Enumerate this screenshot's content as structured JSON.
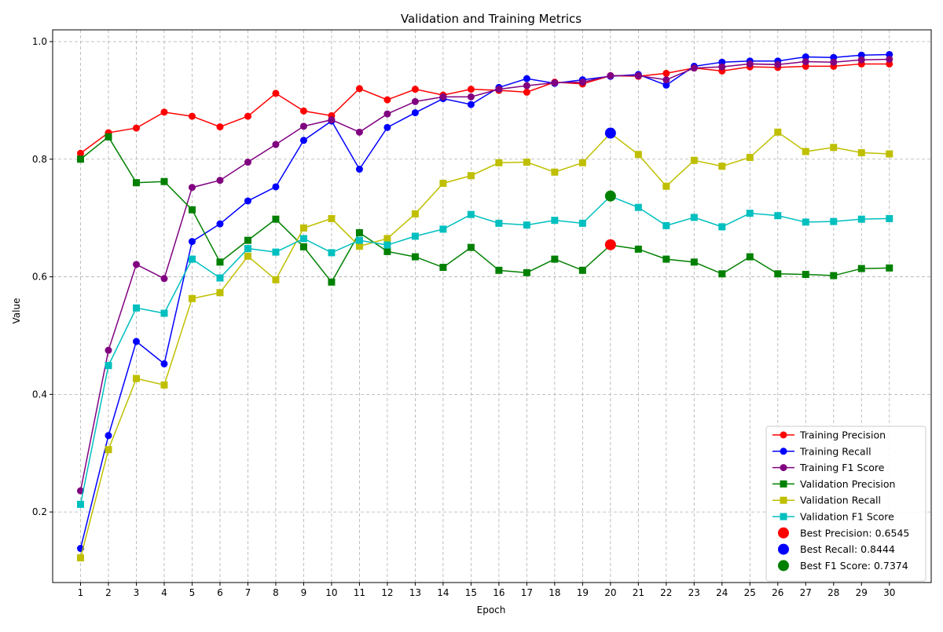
{
  "chart_data": {
    "type": "line",
    "title": "Validation and Training Metrics",
    "xlabel": "Epoch",
    "ylabel": "Value",
    "xlim": [
      0,
      31.5
    ],
    "ylim": [
      0.08,
      1.02
    ],
    "x_ticks": [
      1,
      2,
      3,
      4,
      5,
      6,
      7,
      8,
      9,
      10,
      11,
      12,
      13,
      14,
      15,
      16,
      17,
      18,
      19,
      20,
      21,
      22,
      23,
      24,
      25,
      26,
      27,
      28,
      29,
      30
    ],
    "y_ticks": [
      0.2,
      0.4,
      0.6,
      0.8,
      1.0
    ],
    "y_tick_labels": [
      "0.2",
      "0.4",
      "0.6",
      "0.8",
      "1.0"
    ],
    "grid": true,
    "legend_position": "lower-right",
    "x": [
      1,
      2,
      3,
      4,
      5,
      6,
      7,
      8,
      9,
      10,
      11,
      12,
      13,
      14,
      15,
      16,
      17,
      18,
      19,
      20,
      21,
      22,
      23,
      24,
      25,
      26,
      27,
      28,
      29,
      30
    ],
    "series": [
      {
        "name": "Training Precision",
        "color": "#ff0000",
        "marker": "circle",
        "values": [
          0.81,
          0.845,
          0.853,
          0.88,
          0.873,
          0.855,
          0.873,
          0.912,
          0.882,
          0.874,
          0.92,
          0.901,
          0.919,
          0.909,
          0.919,
          0.917,
          0.914,
          0.931,
          0.928,
          0.942,
          0.941,
          0.946,
          0.955,
          0.95,
          0.957,
          0.956,
          0.958,
          0.958,
          0.962,
          0.962
        ]
      },
      {
        "name": "Training Recall",
        "color": "#0000ff",
        "marker": "circle",
        "values": [
          0.138,
          0.33,
          0.49,
          0.452,
          0.66,
          0.69,
          0.729,
          0.753,
          0.832,
          0.865,
          0.783,
          0.854,
          0.879,
          0.903,
          0.893,
          0.922,
          0.937,
          0.929,
          0.935,
          0.941,
          0.944,
          0.926,
          0.958,
          0.965,
          0.967,
          0.967,
          0.974,
          0.973,
          0.977,
          0.978
        ]
      },
      {
        "name": "Training F1 Score",
        "color": "#800080",
        "marker": "circle",
        "values": [
          0.236,
          0.475,
          0.621,
          0.597,
          0.752,
          0.764,
          0.795,
          0.825,
          0.856,
          0.867,
          0.846,
          0.877,
          0.898,
          0.906,
          0.906,
          0.919,
          0.925,
          0.93,
          0.931,
          0.942,
          0.942,
          0.935,
          0.955,
          0.957,
          0.962,
          0.961,
          0.966,
          0.965,
          0.969,
          0.97
        ]
      },
      {
        "name": "Validation Precision",
        "color": "#008000",
        "marker": "square",
        "values": [
          0.8,
          0.838,
          0.76,
          0.762,
          0.714,
          0.625,
          0.662,
          0.698,
          0.651,
          0.591,
          0.675,
          0.643,
          0.634,
          0.616,
          0.65,
          0.611,
          0.607,
          0.63,
          0.611,
          0.654,
          0.647,
          0.63,
          0.625,
          0.605,
          0.634,
          0.605,
          0.604,
          0.602,
          0.614,
          0.615
        ]
      },
      {
        "name": "Validation Recall",
        "color": "#bfbf00",
        "marker": "square",
        "values": [
          0.122,
          0.306,
          0.427,
          0.416,
          0.563,
          0.573,
          0.635,
          0.595,
          0.683,
          0.699,
          0.652,
          0.665,
          0.707,
          0.759,
          0.772,
          0.794,
          0.795,
          0.778,
          0.794,
          0.844,
          0.808,
          0.754,
          0.798,
          0.788,
          0.803,
          0.846,
          0.813,
          0.82,
          0.811,
          0.809
        ]
      },
      {
        "name": "Validation F1 Score",
        "color": "#00bfbf",
        "marker": "square",
        "values": [
          0.213,
          0.449,
          0.547,
          0.538,
          0.63,
          0.598,
          0.648,
          0.642,
          0.665,
          0.641,
          0.662,
          0.654,
          0.669,
          0.681,
          0.706,
          0.691,
          0.688,
          0.696,
          0.691,
          0.737,
          0.718,
          0.687,
          0.701,
          0.685,
          0.708,
          0.704,
          0.693,
          0.694,
          0.698,
          0.699
        ]
      }
    ],
    "highlights": [
      {
        "name": "Best Precision: 0.6545",
        "color": "#ff0000",
        "x": 20,
        "y": 0.6545
      },
      {
        "name": "Best Recall: 0.8444",
        "color": "#0000ff",
        "x": 20,
        "y": 0.8444
      },
      {
        "name": "Best F1 Score: 0.7374",
        "color": "#008000",
        "x": 20,
        "y": 0.7374
      }
    ]
  }
}
